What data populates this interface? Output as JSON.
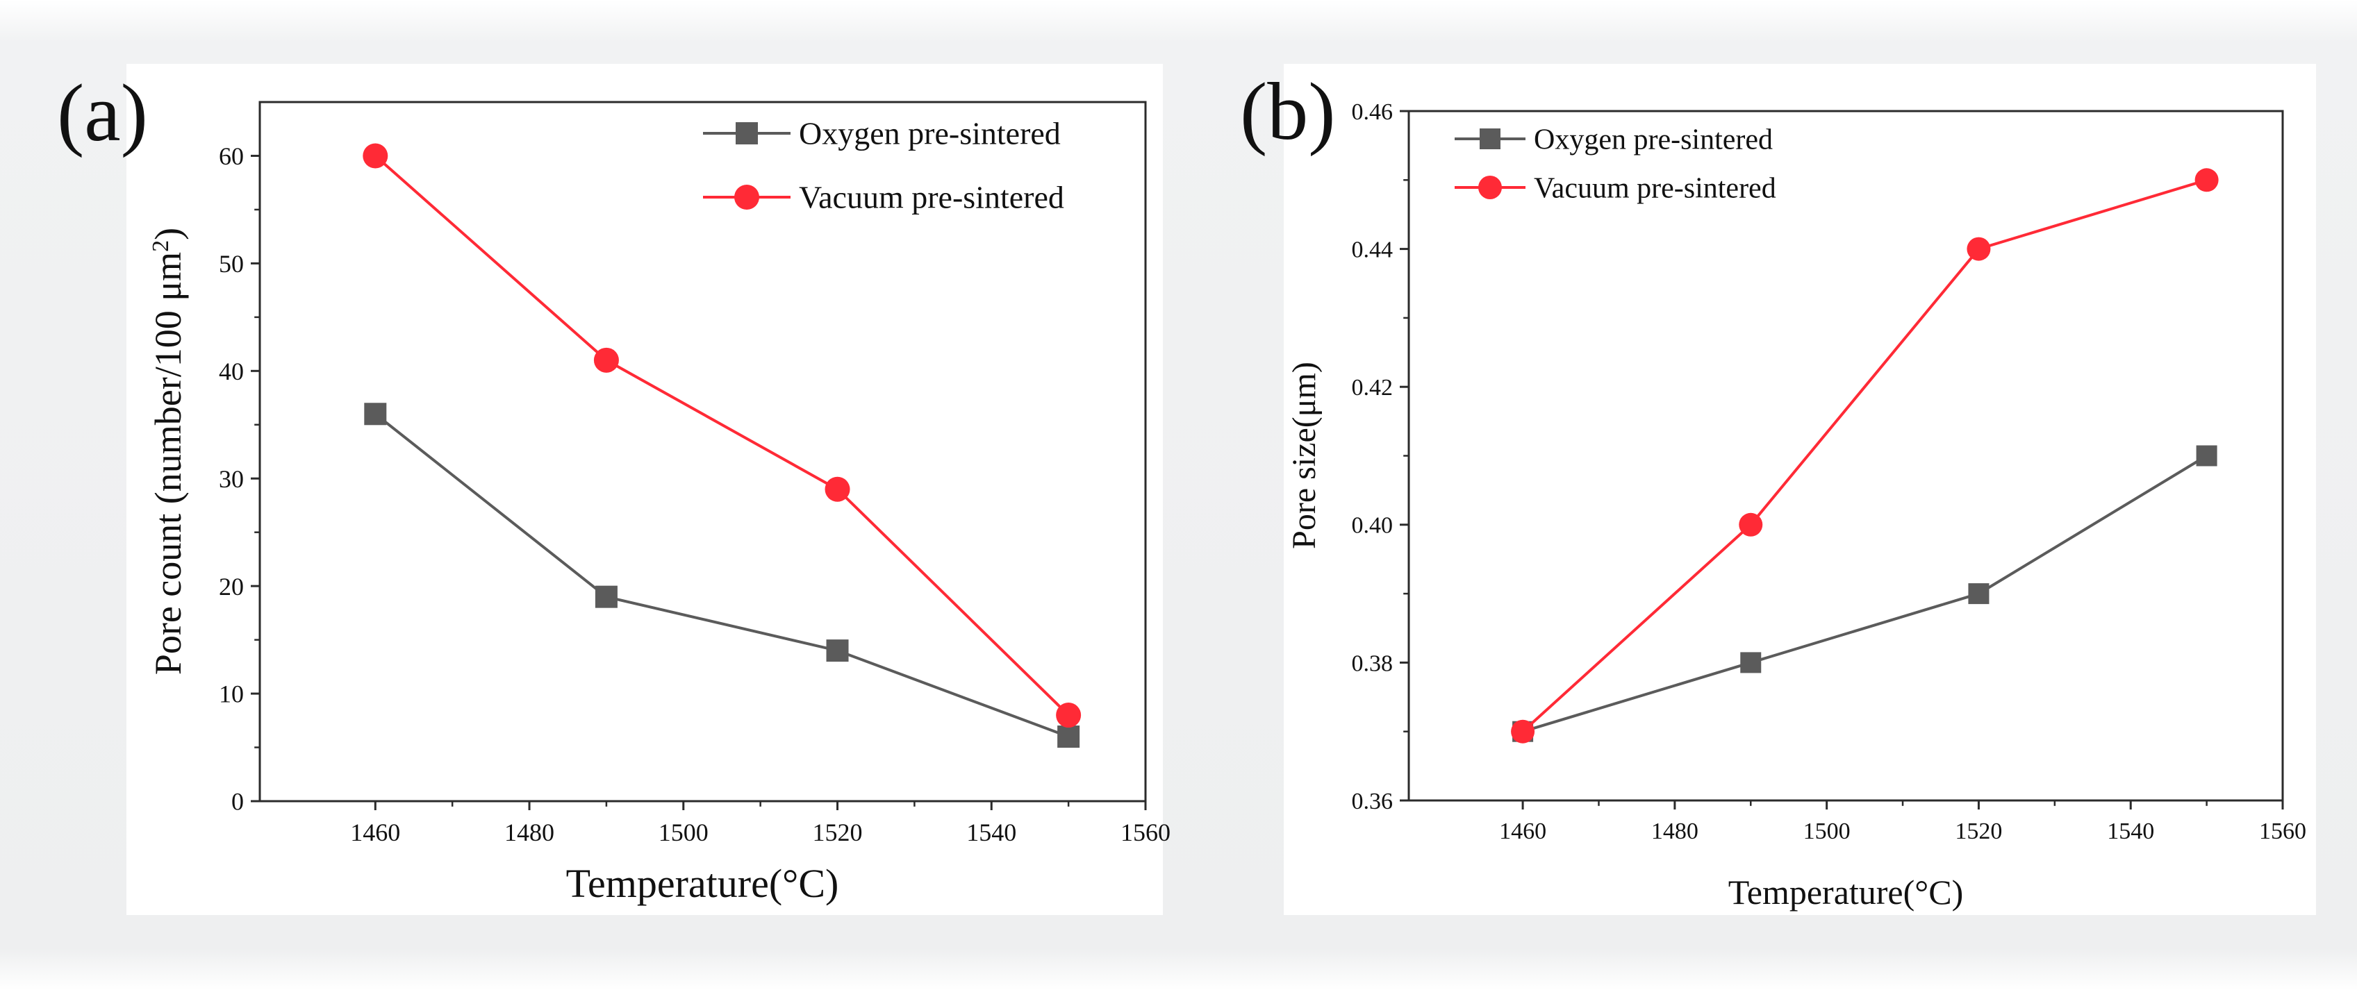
{
  "colors": {
    "oxygen": "#5b5b5b",
    "vacuum": "#ff2a36",
    "axis": "#2b2b2b"
  },
  "chart_data": [
    {
      "type": "line",
      "panel_label": "(a)",
      "xlabel": "Temperature(°C)",
      "ylabel": "Pore count (number/100 μm",
      "ylabel_sup": "2",
      "ylabel_close": ")",
      "xlim": [
        1445,
        1560
      ],
      "ylim": [
        0,
        65
      ],
      "xticks": [
        1460,
        1480,
        1500,
        1520,
        1540,
        1560
      ],
      "yticks": [
        0,
        10,
        20,
        30,
        40,
        50,
        60
      ],
      "xtick_labels": [
        "1460",
        "1480",
        "1500",
        "1520",
        "1540",
        "1560"
      ],
      "ytick_labels": [
        "0",
        "10",
        "20",
        "30",
        "40",
        "50",
        "60"
      ],
      "legend_position": "top-right",
      "x": [
        1460,
        1490,
        1520,
        1550
      ],
      "series": [
        {
          "name": "Oxygen pre-sintered",
          "marker": "square",
          "color_key": "oxygen",
          "values": [
            36,
            19,
            14,
            6
          ]
        },
        {
          "name": "Vacuum pre-sintered",
          "marker": "circle",
          "color_key": "vacuum",
          "values": [
            60,
            41,
            29,
            8
          ]
        }
      ]
    },
    {
      "type": "line",
      "panel_label": "(b)",
      "xlabel": "Temperature(°C)",
      "ylabel": "Pore size(μm)",
      "xlim": [
        1445,
        1560
      ],
      "ylim": [
        0.36,
        0.46
      ],
      "xticks": [
        1460,
        1480,
        1500,
        1520,
        1540,
        1560
      ],
      "yticks": [
        0.36,
        0.38,
        0.4,
        0.42,
        0.44,
        0.46
      ],
      "xtick_labels": [
        "1460",
        "1480",
        "1500",
        "1520",
        "1540",
        "1560"
      ],
      "ytick_labels": [
        "0.36",
        "0.38",
        "0.40",
        "0.42",
        "0.44",
        "0.46"
      ],
      "legend_position": "top-left",
      "x": [
        1460,
        1490,
        1520,
        1550
      ],
      "series": [
        {
          "name": "Oxygen pre-sintered",
          "marker": "square",
          "color_key": "oxygen",
          "values": [
            0.37,
            0.38,
            0.39,
            0.41
          ]
        },
        {
          "name": "Vacuum pre-sintered",
          "marker": "circle",
          "color_key": "vacuum",
          "values": [
            0.37,
            0.4,
            0.44,
            0.45
          ]
        }
      ]
    }
  ]
}
